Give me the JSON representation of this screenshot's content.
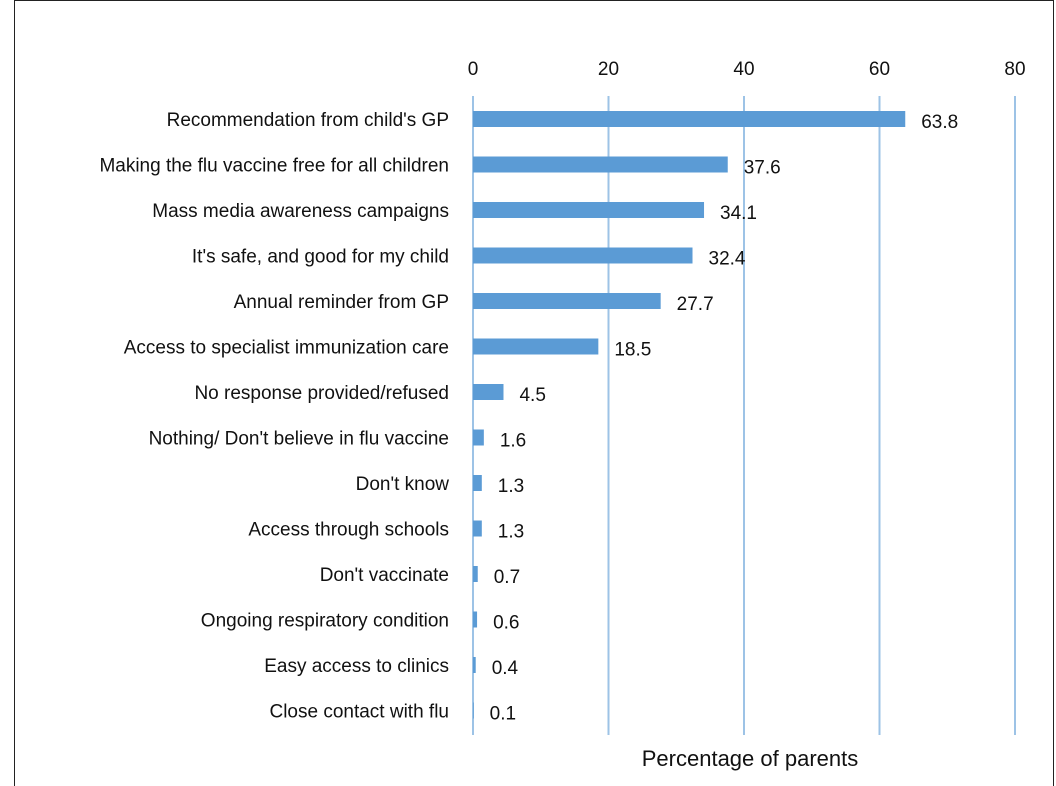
{
  "chart_data": {
    "type": "bar",
    "orientation": "horizontal",
    "categories": [
      "Recommendation from child's GP",
      "Making the flu vaccine free for all children",
      "Mass media awareness campaigns",
      "It's safe, and good for my child",
      "Annual reminder from GP",
      "Access to specialist immunization care",
      "No response provided/refused",
      "Nothing/ Don't believe in flu vaccine",
      "Don't know",
      "Access through schools",
      "Don't vaccinate",
      "Ongoing respiratory condition",
      "Easy access to clinics",
      "Close contact with flu"
    ],
    "values": [
      63.8,
      37.6,
      34.1,
      32.4,
      27.7,
      18.5,
      4.5,
      1.6,
      1.3,
      1.3,
      0.7,
      0.6,
      0.4,
      0.1
    ],
    "value_labels": [
      "63.8",
      "37.6",
      "34.1",
      "32.4",
      "27.7",
      "18.5",
      "4.5",
      "1.6",
      "1.3",
      "1.3",
      "0.7",
      "0.6",
      "0.4",
      "0.1"
    ],
    "title": "",
    "xlabel": "Percentage of parents",
    "ylabel": "",
    "xlim": [
      0,
      80
    ],
    "xticks": [
      "0",
      "20",
      "40",
      "60",
      "80"
    ],
    "x_axis_position": "top",
    "grid": true,
    "legend": "none",
    "colors": {
      "bar": "#5b9bd5",
      "gridline": "#9dc3e6",
      "text": "#111111"
    }
  }
}
